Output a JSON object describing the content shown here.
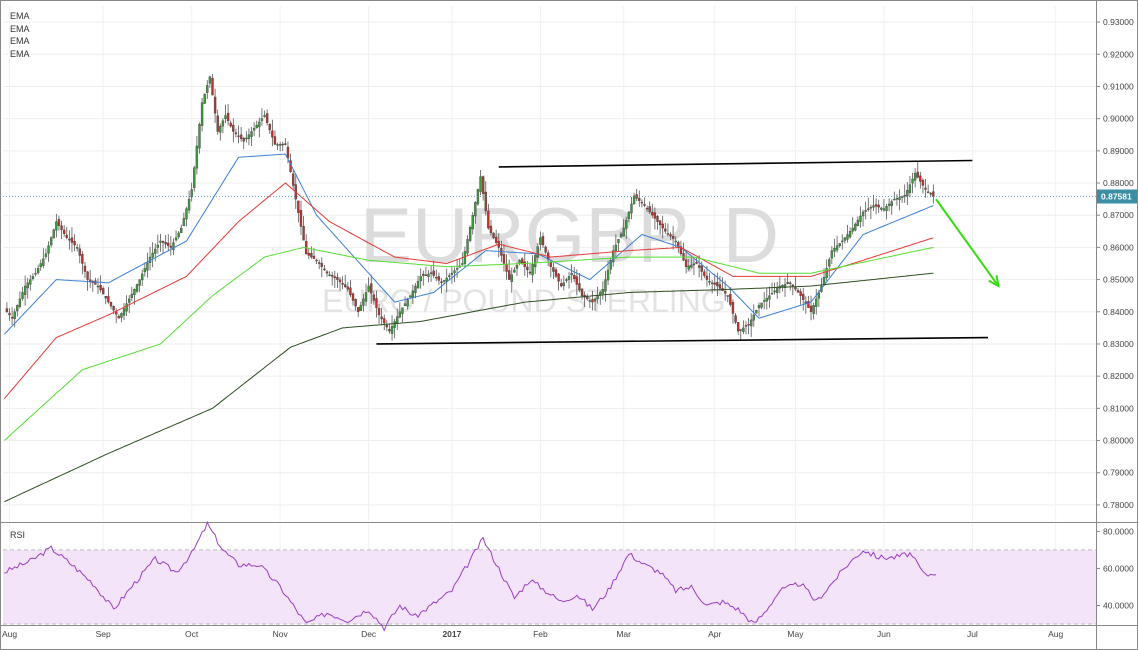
{
  "legend": [
    "EMA",
    "EMA",
    "EMA",
    "EMA"
  ],
  "rsi_label": "RSI",
  "watermark": {
    "symbol": "EURGBP, D",
    "name": "EURO / POUND STERLING"
  },
  "colors": {
    "up": "#3c9a3c",
    "down": "#b8342f",
    "ema_fast": "#3b7fd4",
    "ema_red": "#e53935",
    "ema_green": "#55dd33",
    "ema_dark": "#2e4d22",
    "rsi_line": "#9b3fbf",
    "rsi_band": "#f3e4fa",
    "trend_arrow": "#33dd11",
    "channel": "#000000",
    "price_tag": "#3b8ea5"
  },
  "chart_data": [
    {
      "type": "candlestick",
      "title": "",
      "ylim": [
        0.775,
        0.935
      ],
      "y_ticks": [
        "0.93000",
        "0.92000",
        "0.91000",
        "0.90000",
        "0.89000",
        "0.88000",
        "0.87000",
        "0.86000",
        "0.85000",
        "0.84000",
        "0.83000",
        "0.82000",
        "0.81000",
        "0.80000",
        "0.79000",
        "0.78000"
      ],
      "x_labels": [
        "Aug",
        "Sep",
        "Oct",
        "Nov",
        "Dec",
        "2017",
        "Feb",
        "Mar",
        "Apr",
        "May",
        "Jun",
        "Jul",
        "Aug"
      ],
      "last_price": "0.87581",
      "anchors": [
        [
          0,
          0.841
        ],
        [
          3,
          0.838
        ],
        [
          5,
          0.842
        ],
        [
          8,
          0.848
        ],
        [
          12,
          0.852
        ],
        [
          16,
          0.858
        ],
        [
          20,
          0.868
        ],
        [
          24,
          0.863
        ],
        [
          28,
          0.86
        ],
        [
          32,
          0.85
        ],
        [
          36,
          0.848
        ],
        [
          40,
          0.843
        ],
        [
          44,
          0.838
        ],
        [
          48,
          0.844
        ],
        [
          52,
          0.85
        ],
        [
          56,
          0.857
        ],
        [
          60,
          0.862
        ],
        [
          64,
          0.86
        ],
        [
          68,
          0.866
        ],
        [
          72,
          0.878
        ],
        [
          76,
          0.905
        ],
        [
          79,
          0.913
        ],
        [
          82,
          0.896
        ],
        [
          85,
          0.901
        ],
        [
          88,
          0.896
        ],
        [
          92,
          0.893
        ],
        [
          96,
          0.897
        ],
        [
          100,
          0.901
        ],
        [
          104,
          0.892
        ],
        [
          108,
          0.892
        ],
        [
          112,
          0.875
        ],
        [
          116,
          0.858
        ],
        [
          120,
          0.856
        ],
        [
          124,
          0.852
        ],
        [
          128,
          0.85
        ],
        [
          132,
          0.847
        ],
        [
          136,
          0.84
        ],
        [
          140,
          0.848
        ],
        [
          144,
          0.839
        ],
        [
          148,
          0.834
        ],
        [
          152,
          0.84
        ],
        [
          156,
          0.845
        ],
        [
          160,
          0.851
        ],
        [
          164,
          0.852
        ],
        [
          168,
          0.849
        ],
        [
          172,
          0.852
        ],
        [
          176,
          0.855
        ],
        [
          180,
          0.87
        ],
        [
          183,
          0.882
        ],
        [
          186,
          0.866
        ],
        [
          190,
          0.86
        ],
        [
          194,
          0.85
        ],
        [
          198,
          0.856
        ],
        [
          202,
          0.852
        ],
        [
          206,
          0.863
        ],
        [
          210,
          0.854
        ],
        [
          214,
          0.848
        ],
        [
          218,
          0.852
        ],
        [
          222,
          0.845
        ],
        [
          226,
          0.843
        ],
        [
          230,
          0.847
        ],
        [
          234,
          0.859
        ],
        [
          238,
          0.866
        ],
        [
          242,
          0.876
        ],
        [
          246,
          0.873
        ],
        [
          250,
          0.869
        ],
        [
          254,
          0.865
        ],
        [
          258,
          0.862
        ],
        [
          262,
          0.854
        ],
        [
          266,
          0.855
        ],
        [
          270,
          0.85
        ],
        [
          274,
          0.848
        ],
        [
          278,
          0.845
        ],
        [
          282,
          0.834
        ],
        [
          286,
          0.836
        ],
        [
          290,
          0.842
        ],
        [
          294,
          0.845
        ],
        [
          298,
          0.848
        ],
        [
          302,
          0.849
        ],
        [
          306,
          0.845
        ],
        [
          310,
          0.84
        ],
        [
          314,
          0.848
        ],
        [
          318,
          0.859
        ],
        [
          322,
          0.862
        ],
        [
          326,
          0.866
        ],
        [
          330,
          0.871
        ],
        [
          334,
          0.873
        ],
        [
          338,
          0.872
        ],
        [
          342,
          0.875
        ],
        [
          346,
          0.876
        ],
        [
          350,
          0.883
        ],
        [
          354,
          0.878
        ],
        [
          357,
          0.8758
        ]
      ],
      "ema_series": [
        {
          "color": "ema_fast",
          "anchors": [
            [
              0,
              0.833
            ],
            [
              20,
              0.85
            ],
            [
              40,
              0.849
            ],
            [
              70,
              0.862
            ],
            [
              90,
              0.888
            ],
            [
              108,
              0.889
            ],
            [
              120,
              0.87
            ],
            [
              140,
              0.852
            ],
            [
              150,
              0.843
            ],
            [
              165,
              0.846
            ],
            [
              185,
              0.859
            ],
            [
              205,
              0.858
            ],
            [
              225,
              0.85
            ],
            [
              245,
              0.864
            ],
            [
              260,
              0.86
            ],
            [
              278,
              0.848
            ],
            [
              290,
              0.838
            ],
            [
              310,
              0.843
            ],
            [
              330,
              0.864
            ],
            [
              345,
              0.869
            ],
            [
              357,
              0.873
            ]
          ]
        },
        {
          "color": "ema_red",
          "anchors": [
            [
              0,
              0.813
            ],
            [
              20,
              0.832
            ],
            [
              40,
              0.839
            ],
            [
              70,
              0.851
            ],
            [
              90,
              0.868
            ],
            [
              108,
              0.88
            ],
            [
              125,
              0.868
            ],
            [
              150,
              0.857
            ],
            [
              170,
              0.855
            ],
            [
              190,
              0.861
            ],
            [
              210,
              0.857
            ],
            [
              240,
              0.859
            ],
            [
              260,
              0.86
            ],
            [
              280,
              0.851
            ],
            [
              310,
              0.851
            ],
            [
              330,
              0.856
            ],
            [
              357,
              0.863
            ]
          ]
        },
        {
          "color": "ema_green",
          "anchors": [
            [
              0,
              0.8
            ],
            [
              30,
              0.822
            ],
            [
              60,
              0.83
            ],
            [
              80,
              0.845
            ],
            [
              100,
              0.857
            ],
            [
              115,
              0.86
            ],
            [
              140,
              0.856
            ],
            [
              170,
              0.854
            ],
            [
              200,
              0.855
            ],
            [
              240,
              0.857
            ],
            [
              265,
              0.857
            ],
            [
              290,
              0.852
            ],
            [
              310,
              0.852
            ],
            [
              357,
              0.86
            ]
          ]
        },
        {
          "color": "ema_dark",
          "anchors": [
            [
              0,
              0.781
            ],
            [
              40,
              0.796
            ],
            [
              80,
              0.81
            ],
            [
              110,
              0.829
            ],
            [
              130,
              0.835
            ],
            [
              160,
              0.837
            ],
            [
              200,
              0.843
            ],
            [
              240,
              0.846
            ],
            [
              280,
              0.847
            ],
            [
              310,
              0.848
            ],
            [
              357,
              0.852
            ]
          ]
        }
      ],
      "channel": {
        "top": [
          [
            190,
            0.885
          ],
          [
            372,
            0.887
          ]
        ],
        "bottom": [
          [
            143,
            0.83
          ],
          [
            378,
            0.832
          ]
        ]
      },
      "arrow": {
        "from": [
          358,
          0.875
        ],
        "to": [
          382,
          0.848
        ]
      },
      "x_tick_indices": [
        2,
        38,
        72,
        106,
        140,
        172,
        206,
        238,
        273,
        304,
        338,
        372,
        404
      ],
      "total_bars": 420
    },
    {
      "type": "line",
      "title": "RSI",
      "ylim": [
        30,
        84
      ],
      "y_ticks": [
        "80.0000",
        "60.0000",
        "40.0000"
      ],
      "band": [
        30,
        70
      ],
      "anchors": [
        [
          0,
          58
        ],
        [
          10,
          64
        ],
        [
          18,
          71
        ],
        [
          26,
          62
        ],
        [
          34,
          52
        ],
        [
          42,
          38
        ],
        [
          50,
          52
        ],
        [
          58,
          65
        ],
        [
          66,
          58
        ],
        [
          72,
          68
        ],
        [
          78,
          84
        ],
        [
          84,
          70
        ],
        [
          90,
          62
        ],
        [
          98,
          62
        ],
        [
          106,
          50
        ],
        [
          112,
          38
        ],
        [
          116,
          30
        ],
        [
          124,
          36
        ],
        [
          132,
          32
        ],
        [
          140,
          38
        ],
        [
          146,
          28
        ],
        [
          152,
          40
        ],
        [
          158,
          34
        ],
        [
          166,
          42
        ],
        [
          172,
          48
        ],
        [
          178,
          62
        ],
        [
          184,
          76
        ],
        [
          190,
          60
        ],
        [
          196,
          44
        ],
        [
          202,
          54
        ],
        [
          208,
          48
        ],
        [
          214,
          42
        ],
        [
          220,
          46
        ],
        [
          226,
          38
        ],
        [
          232,
          48
        ],
        [
          240,
          68
        ],
        [
          246,
          62
        ],
        [
          252,
          58
        ],
        [
          258,
          48
        ],
        [
          264,
          50
        ],
        [
          270,
          40
        ],
        [
          276,
          42
        ],
        [
          282,
          38
        ],
        [
          288,
          30
        ],
        [
          292,
          36
        ],
        [
          298,
          48
        ],
        [
          306,
          52
        ],
        [
          312,
          42
        ],
        [
          318,
          52
        ],
        [
          324,
          62
        ],
        [
          330,
          70
        ],
        [
          336,
          66
        ],
        [
          342,
          66
        ],
        [
          348,
          68
        ],
        [
          354,
          56
        ],
        [
          358,
          58
        ]
      ]
    }
  ]
}
